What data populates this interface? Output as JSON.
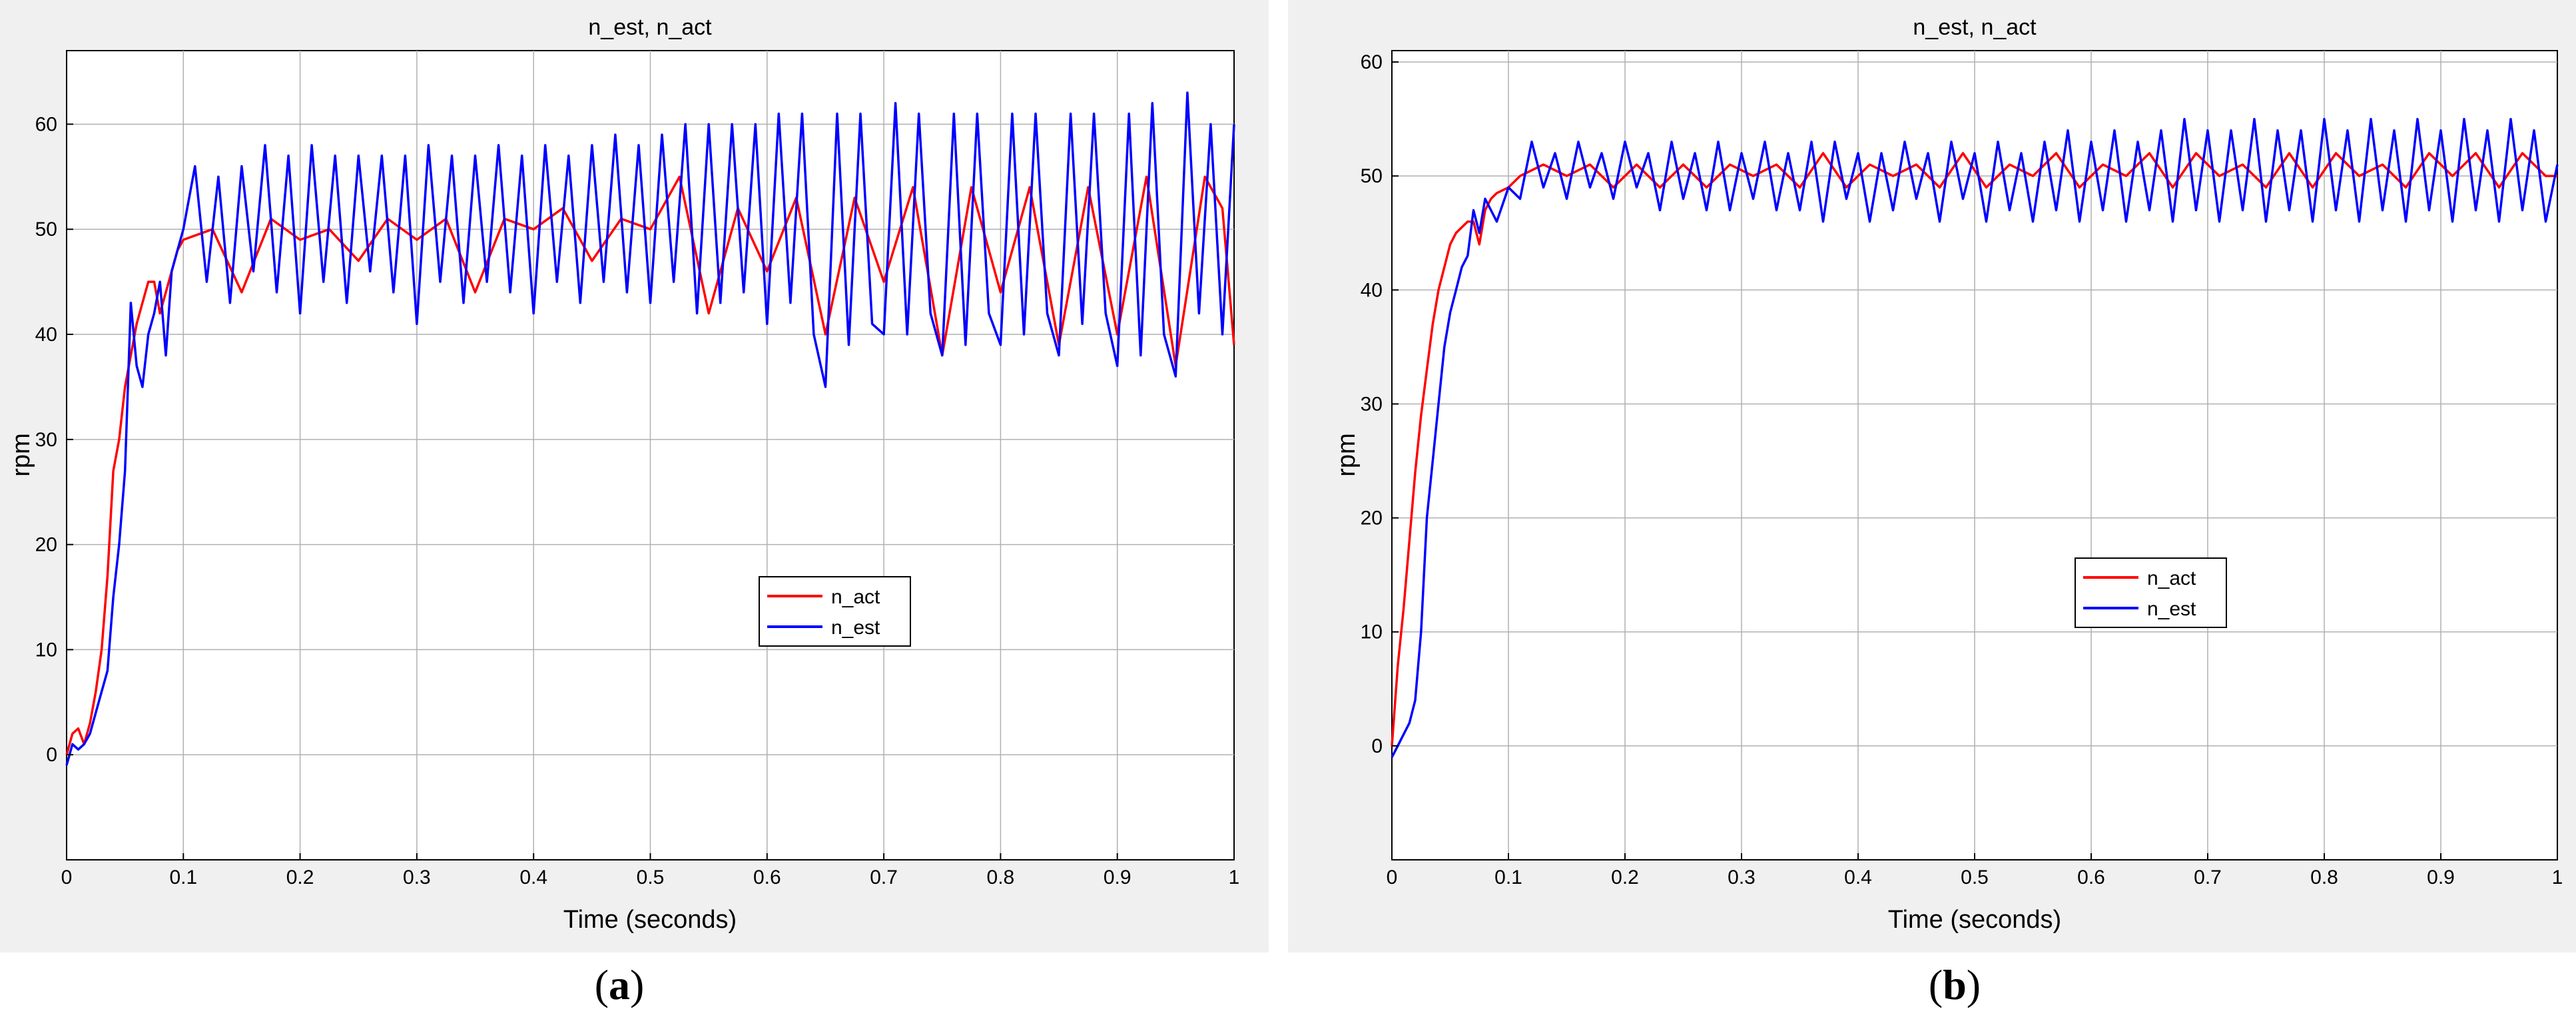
{
  "chart_data": [
    {
      "type": "line",
      "panel_label": "a",
      "title": "n_est, n_act",
      "xlabel": "Time (seconds)",
      "ylabel": "rpm",
      "xlim": [
        0,
        1
      ],
      "ylim": [
        -10,
        67
      ],
      "xticks": [
        "0",
        "0.1",
        "0.2",
        "0.3",
        "0.4",
        "0.5",
        "0.6",
        "0.7",
        "0.8",
        "0.9",
        "1"
      ],
      "yticks": [
        "0",
        "10",
        "20",
        "30",
        "40",
        "50",
        "60"
      ],
      "grid": true,
      "legend": "center-right",
      "colors": {
        "n_act": "#ff0000",
        "n_est": "#0000ff"
      },
      "series": [
        {
          "name": "n_act",
          "x": [
            0.0,
            0.005,
            0.01,
            0.015,
            0.02,
            0.025,
            0.03,
            0.035,
            0.04,
            0.045,
            0.05,
            0.055,
            0.06,
            0.065,
            0.07,
            0.075,
            0.08,
            0.085,
            0.09,
            0.095,
            0.1,
            0.125,
            0.15,
            0.175,
            0.2,
            0.225,
            0.25,
            0.275,
            0.3,
            0.325,
            0.35,
            0.375,
            0.4,
            0.425,
            0.45,
            0.475,
            0.5,
            0.525,
            0.55,
            0.575,
            0.6,
            0.625,
            0.65,
            0.675,
            0.7,
            0.725,
            0.75,
            0.775,
            0.8,
            0.825,
            0.85,
            0.875,
            0.9,
            0.925,
            0.95,
            0.975,
            0.99,
            1.0
          ],
          "y": [
            0,
            2,
            2.5,
            1,
            3,
            6,
            10,
            17,
            27,
            30,
            35,
            38,
            41,
            43,
            45,
            45,
            42,
            44,
            46,
            48,
            49,
            50,
            44,
            51,
            49,
            50,
            47,
            51,
            49,
            51,
            44,
            51,
            50,
            52,
            47,
            51,
            50,
            55,
            42,
            52,
            46,
            53,
            40,
            53,
            45,
            54,
            38,
            54,
            44,
            54,
            39,
            54,
            40,
            55,
            37,
            55,
            52,
            39
          ]
        },
        {
          "name": "n_est",
          "x": [
            0.0,
            0.005,
            0.01,
            0.015,
            0.02,
            0.025,
            0.03,
            0.035,
            0.04,
            0.045,
            0.05,
            0.055,
            0.06,
            0.065,
            0.07,
            0.075,
            0.08,
            0.085,
            0.09,
            0.095,
            0.1,
            0.11,
            0.12,
            0.13,
            0.14,
            0.15,
            0.16,
            0.17,
            0.18,
            0.19,
            0.2,
            0.21,
            0.22,
            0.23,
            0.24,
            0.25,
            0.26,
            0.27,
            0.28,
            0.29,
            0.3,
            0.31,
            0.32,
            0.33,
            0.34,
            0.35,
            0.36,
            0.37,
            0.38,
            0.39,
            0.4,
            0.41,
            0.42,
            0.43,
            0.44,
            0.45,
            0.46,
            0.47,
            0.48,
            0.49,
            0.5,
            0.51,
            0.52,
            0.53,
            0.54,
            0.55,
            0.56,
            0.57,
            0.58,
            0.59,
            0.6,
            0.61,
            0.62,
            0.63,
            0.64,
            0.65,
            0.66,
            0.67,
            0.68,
            0.69,
            0.7,
            0.71,
            0.72,
            0.73,
            0.74,
            0.75,
            0.76,
            0.77,
            0.78,
            0.79,
            0.8,
            0.81,
            0.82,
            0.83,
            0.84,
            0.85,
            0.86,
            0.87,
            0.88,
            0.89,
            0.9,
            0.91,
            0.92,
            0.93,
            0.94,
            0.95,
            0.96,
            0.97,
            0.98,
            0.99,
            1.0
          ],
          "y": [
            -1,
            1,
            0.5,
            1,
            2,
            4,
            6,
            8,
            15,
            20,
            27,
            43,
            37,
            35,
            40,
            42,
            45,
            38,
            46,
            48,
            50,
            56,
            45,
            55,
            43,
            56,
            46,
            58,
            44,
            57,
            42,
            58,
            45,
            57,
            43,
            57,
            46,
            57,
            44,
            57,
            41,
            58,
            45,
            57,
            43,
            57,
            45,
            58,
            44,
            57,
            42,
            58,
            45,
            57,
            43,
            58,
            45,
            59,
            44,
            58,
            43,
            59,
            45,
            60,
            42,
            60,
            43,
            60,
            44,
            60,
            41,
            61,
            43,
            61,
            40,
            35,
            61,
            39,
            61,
            41,
            40,
            62,
            40,
            61,
            42,
            38,
            61,
            39,
            61,
            42,
            39,
            61,
            40,
            61,
            42,
            38,
            61,
            41,
            61,
            42,
            37,
            61,
            38,
            62,
            40,
            36,
            63,
            42,
            60,
            40,
            60
          ]
        }
      ]
    },
    {
      "type": "line",
      "panel_label": "b",
      "title": "n_est, n_act",
      "xlabel": "Time (seconds)",
      "ylabel": "rpm",
      "xlim": [
        0,
        1
      ],
      "ylim": [
        -10,
        61
      ],
      "xticks": [
        "0",
        "0.1",
        "0.2",
        "0.3",
        "0.4",
        "0.5",
        "0.6",
        "0.7",
        "0.8",
        "0.9",
        "1"
      ],
      "yticks": [
        "0",
        "10",
        "20",
        "30",
        "40",
        "50",
        "60"
      ],
      "grid": true,
      "legend": "center-right",
      "colors": {
        "n_act": "#ff0000",
        "n_est": "#0000ff"
      },
      "series": [
        {
          "name": "n_act",
          "x": [
            0.0,
            0.005,
            0.01,
            0.015,
            0.02,
            0.025,
            0.03,
            0.035,
            0.04,
            0.045,
            0.05,
            0.055,
            0.06,
            0.065,
            0.07,
            0.075,
            0.08,
            0.085,
            0.09,
            0.1,
            0.11,
            0.13,
            0.15,
            0.17,
            0.19,
            0.21,
            0.23,
            0.25,
            0.27,
            0.29,
            0.31,
            0.33,
            0.35,
            0.37,
            0.39,
            0.41,
            0.43,
            0.45,
            0.47,
            0.49,
            0.51,
            0.53,
            0.55,
            0.57,
            0.59,
            0.61,
            0.63,
            0.65,
            0.67,
            0.69,
            0.71,
            0.73,
            0.75,
            0.77,
            0.79,
            0.81,
            0.83,
            0.85,
            0.87,
            0.89,
            0.91,
            0.93,
            0.95,
            0.97,
            0.99,
            1.0
          ],
          "y": [
            0,
            7,
            12,
            18,
            24,
            29,
            33,
            37,
            40,
            42,
            44,
            45,
            45.5,
            46,
            46,
            44,
            47,
            48,
            48.5,
            49,
            50,
            51,
            50,
            51,
            49,
            51,
            49,
            51,
            49,
            51,
            50,
            51,
            49,
            52,
            49,
            51,
            50,
            51,
            49,
            52,
            49,
            51,
            50,
            52,
            49,
            51,
            50,
            52,
            49,
            52,
            50,
            51,
            49,
            52,
            49,
            52,
            50,
            51,
            49,
            52,
            50,
            52,
            49,
            52,
            50,
            50
          ]
        },
        {
          "name": "n_est",
          "x": [
            0.0,
            0.005,
            0.01,
            0.015,
            0.02,
            0.025,
            0.03,
            0.035,
            0.04,
            0.045,
            0.05,
            0.055,
            0.06,
            0.065,
            0.07,
            0.075,
            0.08,
            0.09,
            0.1,
            0.11,
            0.12,
            0.13,
            0.14,
            0.15,
            0.16,
            0.17,
            0.18,
            0.19,
            0.2,
            0.21,
            0.22,
            0.23,
            0.24,
            0.25,
            0.26,
            0.27,
            0.28,
            0.29,
            0.3,
            0.31,
            0.32,
            0.33,
            0.34,
            0.35,
            0.36,
            0.37,
            0.38,
            0.39,
            0.4,
            0.41,
            0.42,
            0.43,
            0.44,
            0.45,
            0.46,
            0.47,
            0.48,
            0.49,
            0.5,
            0.51,
            0.52,
            0.53,
            0.54,
            0.55,
            0.56,
            0.57,
            0.58,
            0.59,
            0.6,
            0.61,
            0.62,
            0.63,
            0.64,
            0.65,
            0.66,
            0.67,
            0.68,
            0.69,
            0.7,
            0.71,
            0.72,
            0.73,
            0.74,
            0.75,
            0.76,
            0.77,
            0.78,
            0.79,
            0.8,
            0.81,
            0.82,
            0.83,
            0.84,
            0.85,
            0.86,
            0.87,
            0.88,
            0.89,
            0.9,
            0.91,
            0.92,
            0.93,
            0.94,
            0.95,
            0.96,
            0.97,
            0.98,
            0.99,
            1.0
          ],
          "y": [
            -1,
            0,
            1,
            2,
            4,
            10,
            20,
            25,
            30,
            35,
            38,
            40,
            42,
            43,
            47,
            45,
            48,
            46,
            49,
            48,
            53,
            49,
            52,
            48,
            53,
            49,
            52,
            48,
            53,
            49,
            52,
            47,
            53,
            48,
            52,
            47,
            53,
            47,
            52,
            48,
            53,
            47,
            52,
            47,
            53,
            46,
            53,
            48,
            52,
            46,
            52,
            47,
            53,
            48,
            52,
            46,
            53,
            48,
            52,
            46,
            53,
            47,
            52,
            46,
            53,
            47,
            54,
            46,
            53,
            47,
            54,
            46,
            53,
            47,
            54,
            46,
            55,
            47,
            54,
            46,
            54,
            47,
            55,
            46,
            54,
            47,
            54,
            46,
            55,
            47,
            54,
            46,
            55,
            47,
            54,
            46,
            55,
            47,
            54,
            46,
            55,
            47,
            54,
            46,
            55,
            47,
            54,
            46,
            51
          ]
        }
      ]
    }
  ]
}
